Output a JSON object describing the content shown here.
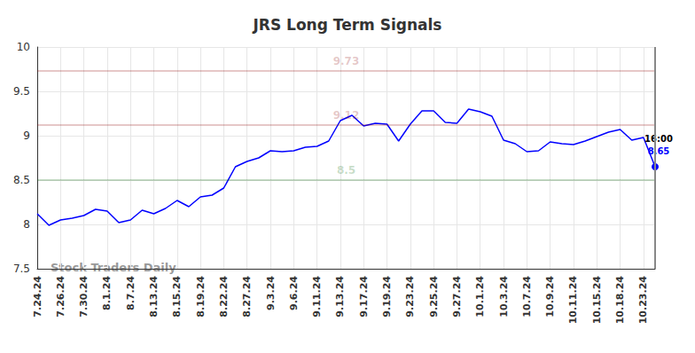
{
  "chart_data": {
    "type": "line",
    "title": "JRS Long Term Signals",
    "watermark": "Stock Traders Daily",
    "categories": [
      "7.24.24",
      null,
      "7.26.24",
      null,
      "7.30.24",
      null,
      "8.1.24",
      null,
      "8.7.24",
      null,
      "8.13.24",
      null,
      "8.15.24",
      null,
      "8.19.24",
      null,
      "8.22.24",
      null,
      "8.27.24",
      null,
      "9.3.24",
      null,
      "9.6.24",
      null,
      "9.11.24",
      null,
      "9.13.24",
      null,
      "9.17.24",
      null,
      "9.19.24",
      null,
      "9.23.24",
      null,
      "9.25.24",
      null,
      "9.27.24",
      null,
      "10.1.24",
      null,
      "10.3.24",
      null,
      "10.7.24",
      null,
      "10.9.24",
      null,
      "10.11.24",
      null,
      "10.15.24",
      null,
      "10.18.24",
      null,
      "10.23.24",
      null
    ],
    "values": [
      8.12,
      7.99,
      8.05,
      8.07,
      8.1,
      8.17,
      8.15,
      8.02,
      8.05,
      8.16,
      8.12,
      8.18,
      8.27,
      8.2,
      8.31,
      8.33,
      8.41,
      8.65,
      8.71,
      8.75,
      8.83,
      8.82,
      8.83,
      8.87,
      8.88,
      8.94,
      9.17,
      9.23,
      9.11,
      9.14,
      9.13,
      8.94,
      9.13,
      9.28,
      9.28,
      9.15,
      9.14,
      9.3,
      9.27,
      9.22,
      8.95,
      8.91,
      8.82,
      8.83,
      8.93,
      8.91,
      8.9,
      8.94,
      8.99,
      9.04,
      9.07,
      8.95,
      8.98,
      8.65
    ],
    "color": "#0000ff",
    "ylim": [
      7.5,
      10
    ],
    "yticks": [
      7.5,
      8,
      8.5,
      9,
      9.5,
      10
    ],
    "grid": true,
    "reference_lines": [
      {
        "value": 9.73,
        "label": "9.73",
        "color": "#8b0000"
      },
      {
        "value": 9.12,
        "label": "9.12",
        "color": "#8b0000"
      },
      {
        "value": 8.5,
        "label": "8.5",
        "color": "#006400"
      }
    ],
    "end_marker": {
      "label": "16:00",
      "value": 8.65
    }
  }
}
